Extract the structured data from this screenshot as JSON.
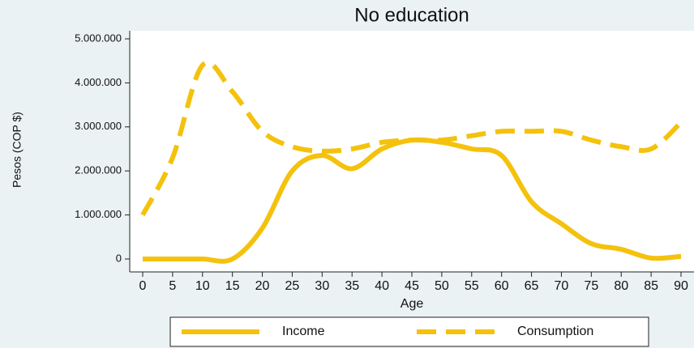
{
  "chart_data": {
    "type": "line",
    "title": "No education",
    "x_label": "Age",
    "y_label": "Pesos (COP $)",
    "x": [
      0,
      5,
      10,
      15,
      20,
      25,
      30,
      35,
      40,
      45,
      50,
      55,
      60,
      65,
      70,
      75,
      80,
      85,
      90
    ],
    "series": [
      {
        "name": "Income",
        "color": "#f4c20d",
        "line_style": "solid",
        "values": [
          0,
          0,
          0,
          0,
          700000,
          2000000,
          2350000,
          2050000,
          2500000,
          2700000,
          2650000,
          2500000,
          2350000,
          1300000,
          800000,
          350000,
          220000,
          20000,
          60000
        ]
      },
      {
        "name": "Consumption",
        "color": "#f4c20d",
        "line_style": "dashed",
        "values": [
          1000000,
          2300000,
          4400000,
          3800000,
          2900000,
          2550000,
          2450000,
          2500000,
          2650000,
          2700000,
          2700000,
          2800000,
          2900000,
          2900000,
          2900000,
          2700000,
          2550000,
          2500000,
          3100000
        ]
      }
    ],
    "xlim": [
      0,
      90
    ],
    "xticks": [
      0,
      5,
      10,
      15,
      20,
      25,
      30,
      35,
      40,
      45,
      50,
      55,
      60,
      65,
      70,
      75,
      80,
      85,
      90
    ],
    "ylim": [
      0,
      5000000
    ],
    "yticks": [
      0,
      {
        "value": 1000000,
        "label": "1.000.000"
      },
      {
        "value": 2000000,
        "label": "2.000.000"
      },
      {
        "value": 3000000,
        "label": "3.000.000"
      },
      {
        "value": 4000000,
        "label": "4.000.000"
      },
      {
        "value": 5000000,
        "label": "5.000.000"
      }
    ],
    "grid": false
  }
}
